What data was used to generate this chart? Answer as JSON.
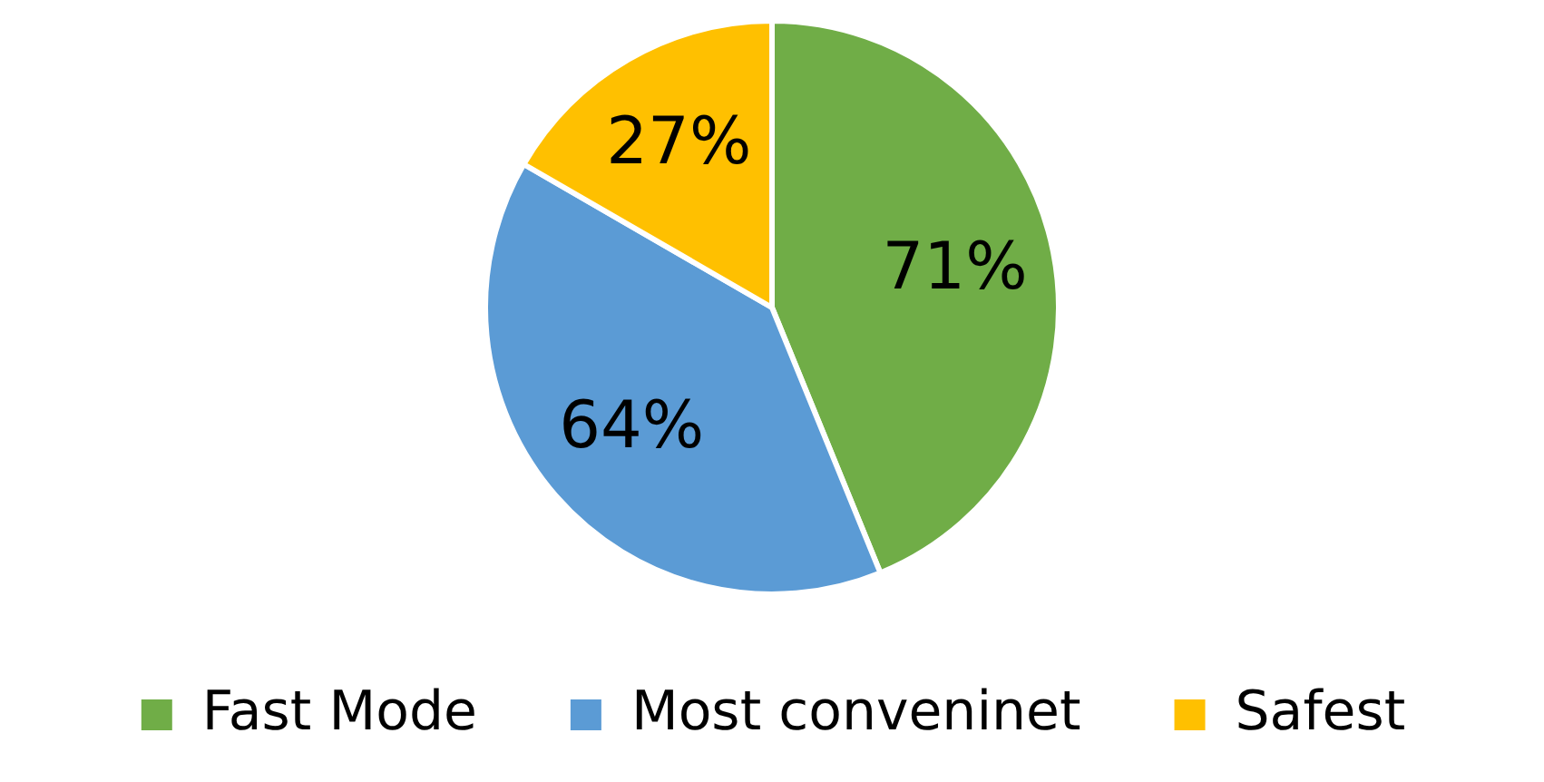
{
  "chart_data": {
    "type": "pie",
    "categories": [
      "Fast Mode",
      "Most conveninet",
      "Safest"
    ],
    "values": [
      71,
      64,
      27
    ],
    "colors": [
      "#70ad47",
      "#5b9bd5",
      "#ffc000"
    ],
    "value_labels": [
      "71%",
      "64%",
      "27%"
    ],
    "legend": "bottom"
  }
}
